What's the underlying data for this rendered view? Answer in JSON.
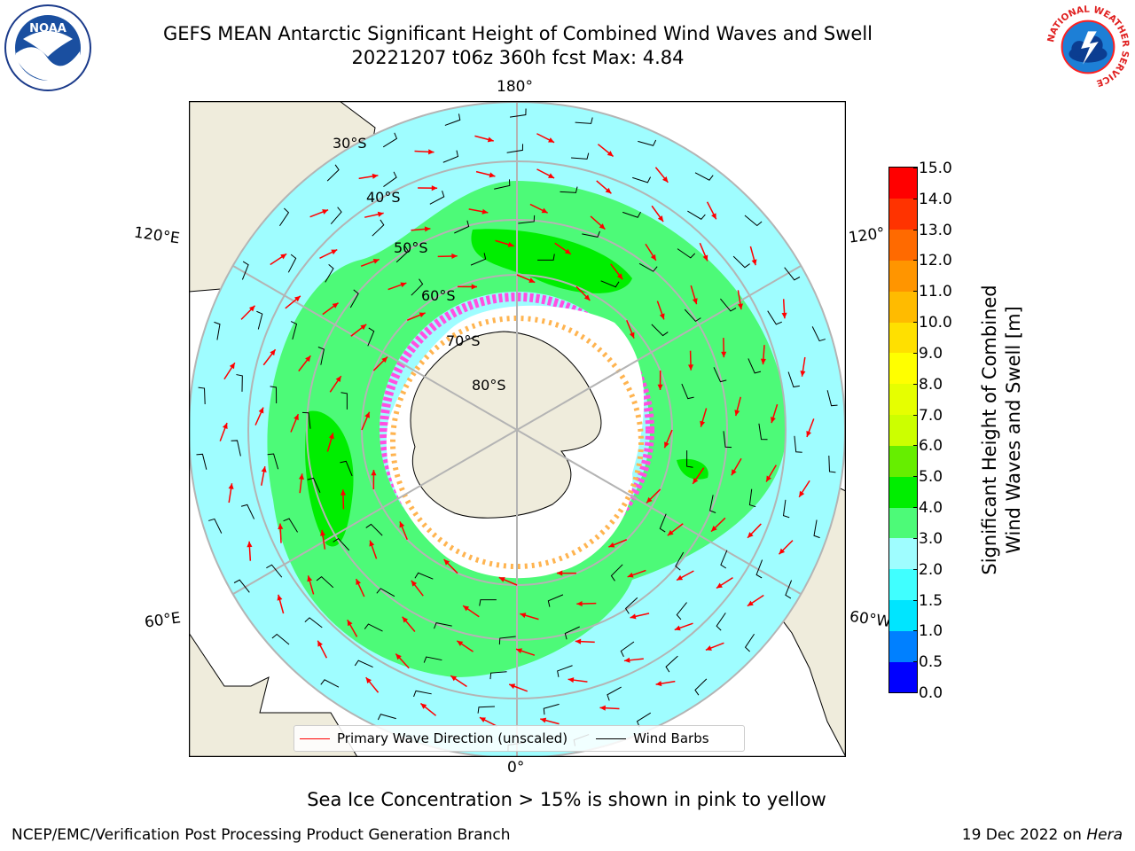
{
  "title": {
    "line1": "GEFS MEAN Antarctic Significant Height of Combined Wind Waves and Swell",
    "line2": "20221207 t06z 360h fcst   Max: 4.84"
  },
  "map": {
    "projection": "south-polar-stereographic",
    "longitude_labels": {
      "top": "180°",
      "bottom": "0°",
      "upper_left": "120°E",
      "lower_left": "60°E",
      "upper_right": "120°",
      "lower_right": "60°W"
    },
    "latitude_labels": [
      "30°S",
      "40°S",
      "50°S",
      "60°S",
      "70°S",
      "80°S"
    ],
    "ocean_color": "#9ffdff",
    "land_color": "#efecdc",
    "sea_ice_color": "#ffffff",
    "wave_band_color": "#4dfa78"
  },
  "legend": {
    "primary_wave_label": "Primary Wave Direction (unscaled)",
    "primary_wave_color": "#ff0000",
    "wind_barbs_label": "Wind Barbs",
    "wind_barbs_color": "#000000"
  },
  "colorbar": {
    "label_line1": "Significant Height of Combined",
    "label_line2": "Wind Waves and Swell [m]",
    "ticks": [
      "15.0",
      "14.0",
      "13.0",
      "12.0",
      "11.0",
      "10.0",
      "9.0",
      "8.0",
      "7.0",
      "6.0",
      "5.0",
      "4.0",
      "3.0",
      "2.0",
      "1.5",
      "1.0",
      "0.5",
      "0.0"
    ],
    "levels": [
      0.0,
      0.5,
      1.0,
      1.5,
      2.0,
      3.0,
      4.0,
      5.0,
      6.0,
      7.0,
      8.0,
      9.0,
      10.0,
      11.0,
      12.0,
      13.0,
      14.0,
      15.0
    ],
    "colors": [
      "#0000ff",
      "#0080ff",
      "#00e5ff",
      "#40ffff",
      "#9ffdff",
      "#4dfa78",
      "#00ee00",
      "#66ee00",
      "#ccff00",
      "#e6ff00",
      "#ffff00",
      "#ffe000",
      "#ffbb00",
      "#ff9500",
      "#ff6a00",
      "#ff3300",
      "#ff0000"
    ]
  },
  "subtitle": "Sea Ice Concentration > 15% is shown in pink to yellow",
  "footer": {
    "left": "NCEP/EMC/Verification Post Processing Product Generation Branch",
    "right_date": "19 Dec 2022 on",
    "right_host": "Hera"
  },
  "logos": {
    "noaa_text": "NOAA",
    "nws_ring_text": "NATIONAL WEATHER SERVICE"
  }
}
